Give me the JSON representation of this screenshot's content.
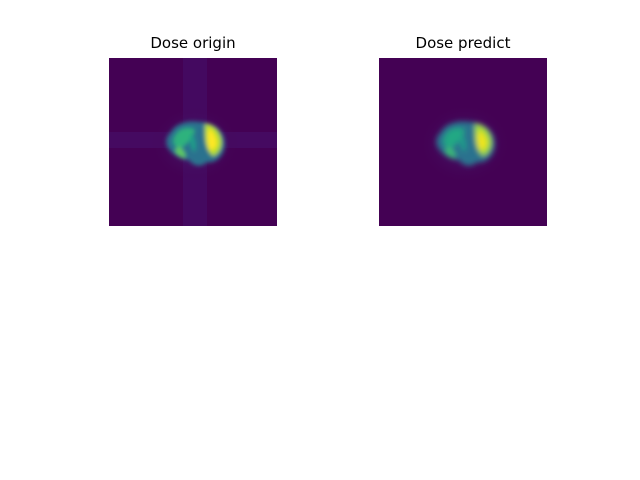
{
  "figure": {
    "panels": [
      {
        "title": "Dose origin"
      },
      {
        "title": "Dose predict"
      }
    ],
    "colormap": "viridis",
    "colors": {
      "background_low": "#440154",
      "mid": "#21918c",
      "peak": "#fde725"
    }
  }
}
